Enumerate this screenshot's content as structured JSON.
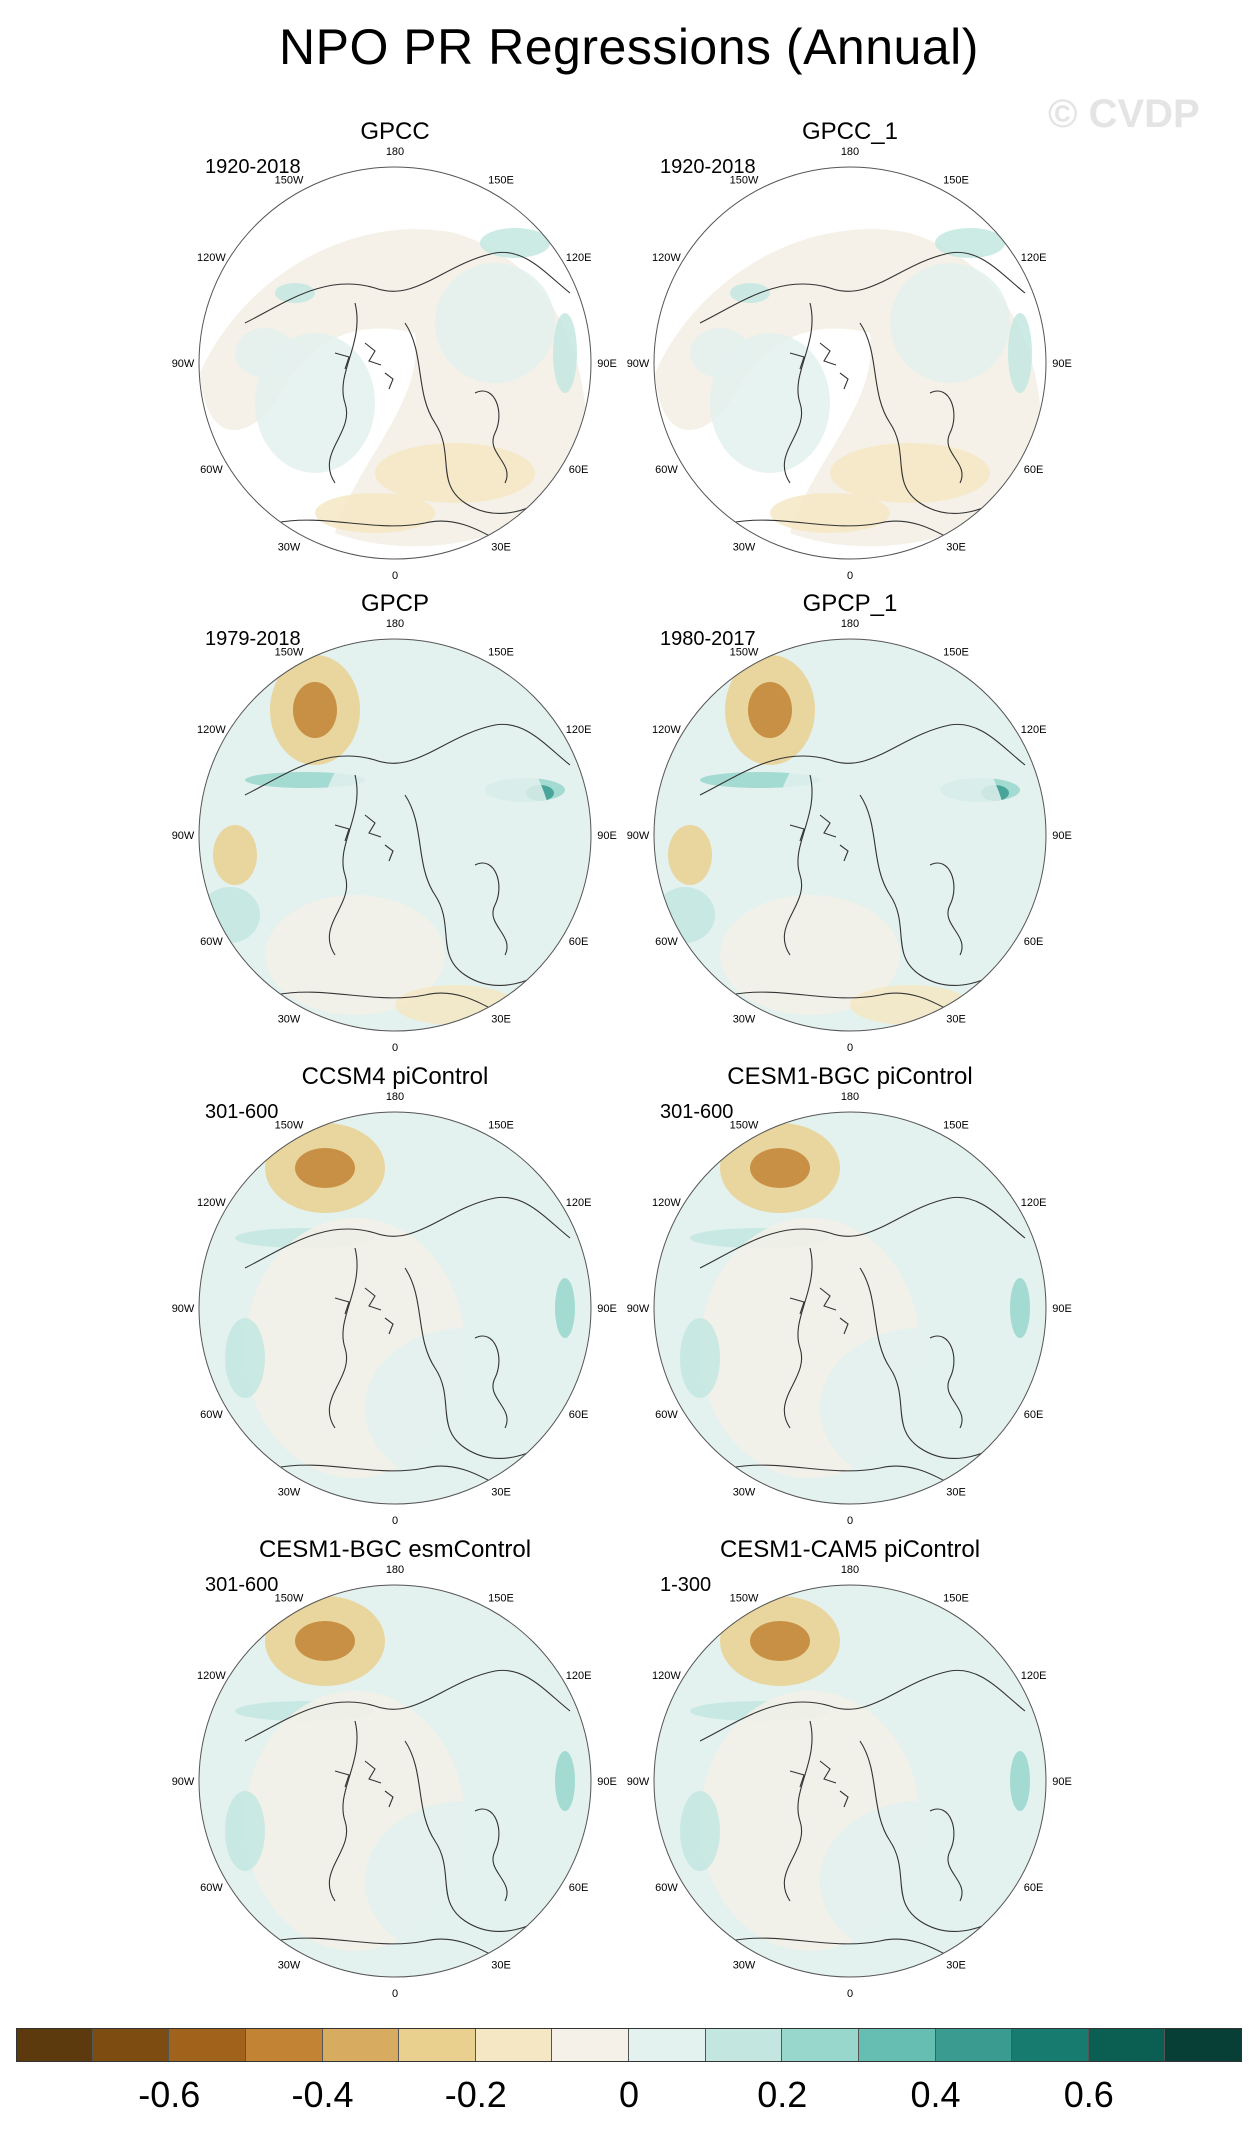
{
  "title": "NPO PR Regressions (Annual)",
  "watermark": "© CVDP",
  "lon_labels": [
    "180",
    "150E",
    "120E",
    "90E",
    "60E",
    "30E",
    "0",
    "30W",
    "60W",
    "90W",
    "120W",
    "150W"
  ],
  "panels": [
    {
      "title": "GPCC",
      "period": "1920-2018",
      "pattern": "gpcc"
    },
    {
      "title": "GPCC_1",
      "period": "1920-2018",
      "pattern": "gpcc"
    },
    {
      "title": "GPCP",
      "period": "1979-2018",
      "pattern": "gpcp"
    },
    {
      "title": "GPCP_1",
      "period": "1980-2017",
      "pattern": "gpcp"
    },
    {
      "title": "CCSM4 piControl",
      "period": "301-600",
      "pattern": "model"
    },
    {
      "title": "CESM1-BGC piControl",
      "period": "301-600",
      "pattern": "model"
    },
    {
      "title": "CESM1-BGC esmControl",
      "period": "301-600",
      "pattern": "model"
    },
    {
      "title": "CESM1-CAM5 piControl",
      "period": "1-300",
      "pattern": "model"
    }
  ],
  "colorbar": {
    "colors": [
      "#5c3a0e",
      "#7d4c10",
      "#a1631c",
      "#c28434",
      "#d8ac60",
      "#ead08f",
      "#f5e7c4",
      "#f5f1e8",
      "#e3f1ef",
      "#c3e7e0",
      "#98d7cc",
      "#66bdb1",
      "#3a9b90",
      "#177b6f",
      "#0b5e52",
      "#073f36"
    ],
    "tick_labels": [
      "-0.6",
      "-0.4",
      "-0.2",
      "0",
      "0.2",
      "0.4",
      "0.6"
    ]
  }
}
